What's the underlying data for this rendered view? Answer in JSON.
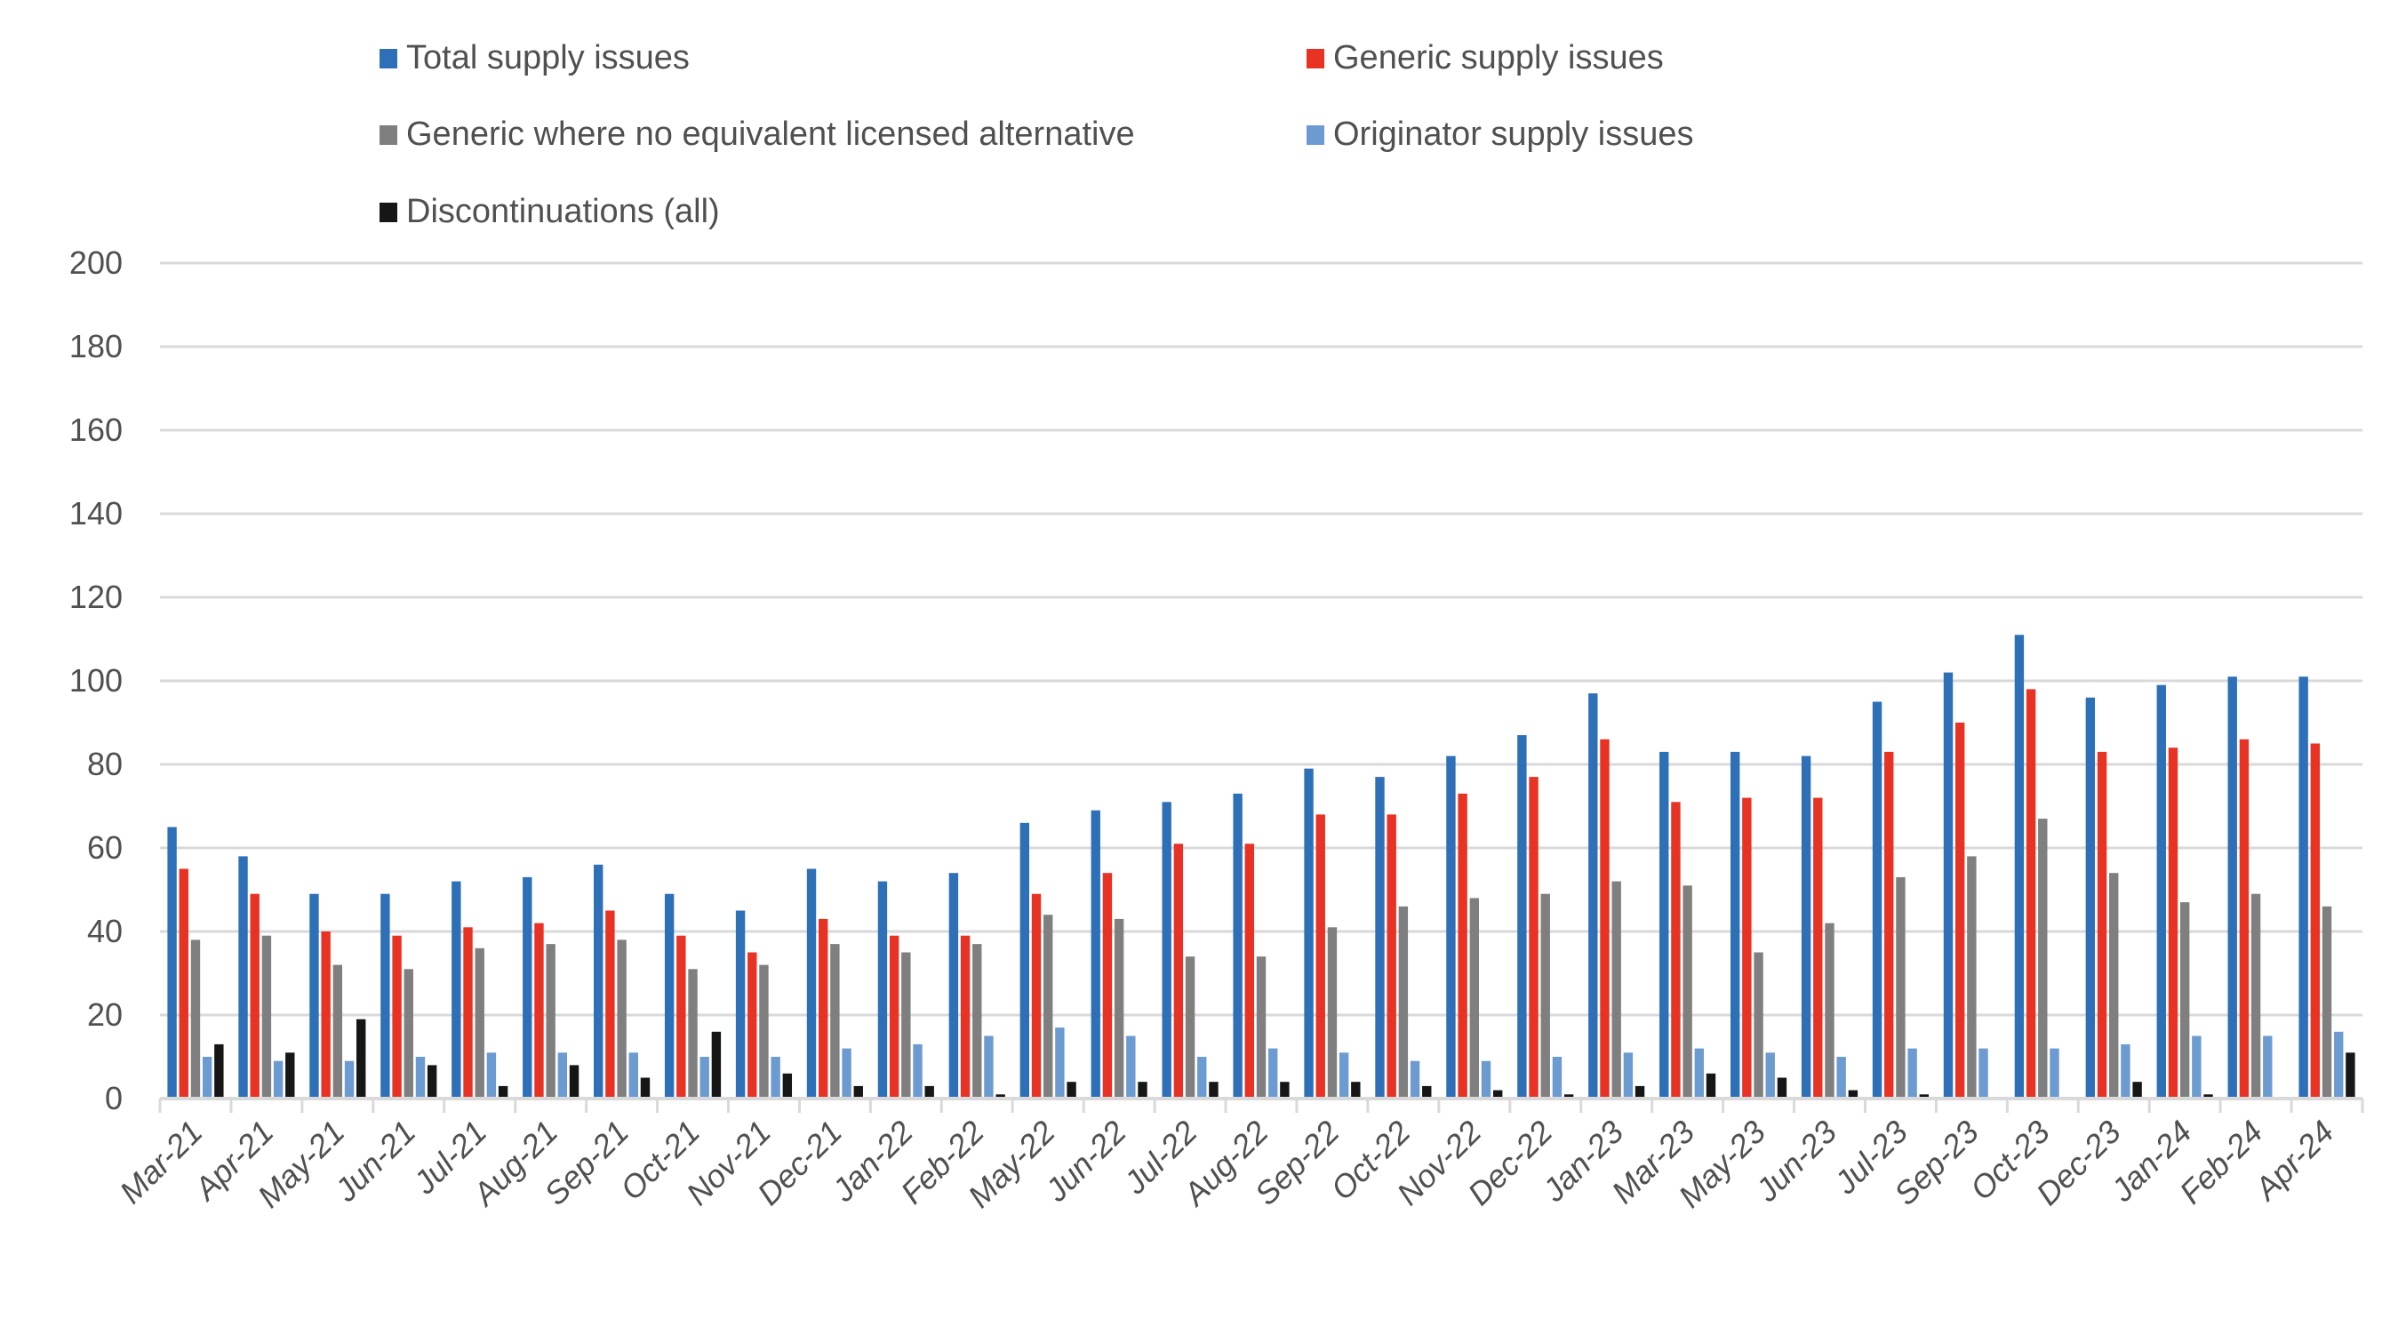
{
  "chart_data": {
    "type": "bar",
    "title": "",
    "xlabel": "",
    "ylabel": "",
    "ylim": [
      0,
      200
    ],
    "yticks": [
      0,
      20,
      40,
      60,
      80,
      100,
      120,
      140,
      160,
      180,
      200
    ],
    "grid": true,
    "legend_position": "top",
    "categories": [
      "Mar-21",
      "Apr-21",
      "May-21",
      "Jun-21",
      "Jul-21",
      "Aug-21",
      "Sep-21",
      "Oct-21",
      "Nov-21",
      "Dec-21",
      "Jan-22",
      "Feb-22",
      "May-22",
      "Jun-22",
      "Jul-22",
      "Aug-22",
      "Sep-22",
      "Oct-22",
      "Nov-22",
      "Dec-22",
      "Jan-23",
      "Mar-23",
      "May-23",
      "Jun-23",
      "Jul-23",
      "Sep-23",
      "Oct-23",
      "Dec-23",
      "Jan-24",
      "Feb-24",
      "Apr-24"
    ],
    "series": [
      {
        "name": "Total supply issues",
        "color": "#2E70B8",
        "values": [
          65,
          58,
          49,
          49,
          52,
          53,
          56,
          49,
          45,
          55,
          52,
          54,
          66,
          69,
          71,
          73,
          79,
          77,
          82,
          87,
          97,
          83,
          83,
          82,
          95,
          102,
          111,
          96,
          99,
          101,
          101
        ]
      },
      {
        "name": "Generic supply issues",
        "color": "#E83224",
        "values": [
          55,
          49,
          40,
          39,
          41,
          42,
          45,
          39,
          35,
          43,
          39,
          39,
          49,
          54,
          61,
          61,
          68,
          68,
          73,
          77,
          86,
          71,
          72,
          72,
          83,
          90,
          98,
          83,
          84,
          86,
          85
        ]
      },
      {
        "name": "Generic where no equivalent licensed alternative",
        "color": "#7F7F7F",
        "values": [
          38,
          39,
          32,
          31,
          36,
          37,
          38,
          31,
          32,
          37,
          35,
          37,
          44,
          43,
          34,
          34,
          41,
          46,
          48,
          49,
          52,
          51,
          35,
          42,
          53,
          58,
          67,
          54,
          47,
          49,
          46
        ]
      },
      {
        "name": "Originator supply issues",
        "color": "#6C9BD2",
        "values": [
          10,
          9,
          9,
          10,
          11,
          11,
          11,
          10,
          10,
          12,
          13,
          15,
          17,
          15,
          10,
          12,
          11,
          9,
          9,
          10,
          11,
          12,
          11,
          10,
          12,
          12,
          12,
          13,
          15,
          15,
          16
        ]
      },
      {
        "name": "Discontinuations (all)",
        "color": "#161616",
        "values": [
          13,
          11,
          19,
          8,
          3,
          8,
          5,
          16,
          6,
          3,
          3,
          1,
          4,
          4,
          4,
          4,
          4,
          3,
          2,
          1,
          3,
          6,
          5,
          2,
          1,
          0,
          0,
          4,
          1,
          0,
          11
        ]
      }
    ]
  }
}
